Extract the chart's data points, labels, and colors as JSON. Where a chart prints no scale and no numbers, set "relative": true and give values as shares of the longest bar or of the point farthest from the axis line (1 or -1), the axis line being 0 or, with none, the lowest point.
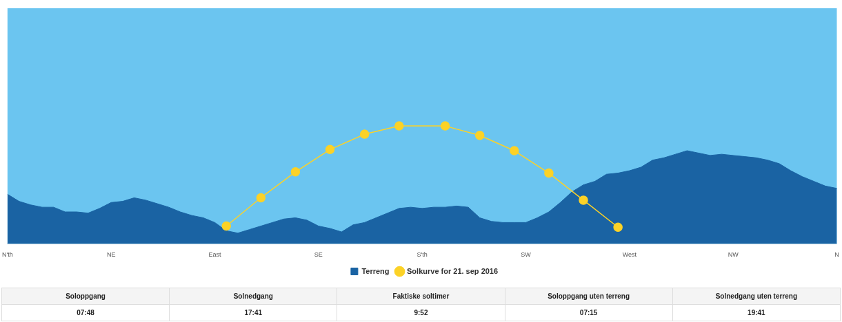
{
  "chart_data": {
    "type": "area",
    "relative": true,
    "categories": [
      "N'th",
      null,
      null,
      null,
      null,
      null,
      null,
      null,
      null,
      "NE",
      null,
      null,
      null,
      null,
      null,
      null,
      null,
      null,
      "East",
      null,
      null,
      null,
      null,
      null,
      null,
      null,
      null,
      "SE",
      null,
      null,
      null,
      null,
      null,
      null,
      null,
      null,
      "S'th",
      null,
      null,
      null,
      null,
      null,
      null,
      null,
      null,
      "SW",
      null,
      null,
      null,
      null,
      null,
      null,
      null,
      null,
      "West",
      null,
      null,
      null,
      null,
      null,
      null,
      null,
      null,
      "NW",
      null,
      null,
      null,
      null,
      null,
      null,
      null,
      null,
      "N"
    ],
    "series": [
      {
        "name": "Terreng",
        "color": "#1a63a3",
        "marker": "none",
        "values": [
          0.42,
          0.36,
          0.33,
          0.31,
          0.31,
          0.27,
          0.27,
          0.26,
          0.3,
          0.35,
          0.36,
          0.39,
          0.37,
          0.34,
          0.31,
          0.27,
          0.24,
          0.22,
          0.18,
          0.11,
          0.09,
          0.12,
          0.15,
          0.18,
          0.21,
          0.22,
          0.2,
          0.15,
          0.13,
          0.1,
          0.16,
          0.18,
          0.22,
          0.26,
          0.3,
          0.31,
          0.3,
          0.31,
          0.31,
          0.32,
          0.31,
          0.22,
          0.19,
          0.18,
          0.18,
          0.18,
          0.22,
          0.27,
          0.35,
          0.44,
          0.5,
          0.53,
          0.59,
          0.6,
          0.62,
          0.65,
          0.71,
          0.73,
          0.76,
          0.79,
          0.77,
          0.75,
          0.76,
          0.75,
          0.74,
          0.73,
          0.71,
          0.68,
          0.62,
          0.57,
          0.53,
          0.49,
          0.47
        ]
      },
      {
        "name": "Solkurve for 21. sep 2016",
        "type": "line",
        "color": "#fcd227",
        "marker": "circle",
        "line_style": "solid",
        "values": [
          null,
          null,
          null,
          null,
          null,
          null,
          null,
          null,
          null,
          null,
          null,
          null,
          null,
          null,
          null,
          null,
          null,
          null,
          null,
          0.15,
          null,
          null,
          0.39,
          null,
          null,
          0.61,
          null,
          null,
          0.8,
          null,
          null,
          0.93,
          null,
          null,
          1,
          null,
          null,
          null,
          1,
          null,
          null,
          0.92,
          null,
          null,
          0.79,
          null,
          null,
          0.6,
          null,
          null,
          0.37,
          null,
          null,
          0.14,
          null,
          null,
          null,
          null,
          null,
          null,
          null,
          null,
          null,
          null,
          null,
          null,
          null,
          null,
          null,
          null,
          null,
          null,
          null
        ]
      }
    ],
    "bands": [
      {
        "axis": "x",
        "from": "N'th",
        "to": "N",
        "color": "#6bc5f0"
      }
    ],
    "grid": false,
    "legend": "bottom",
    "annotations": [
      "Soloppgang",
      "Solnedgang",
      "Faktiske soltimer",
      "Soloppgang uten terreng",
      "Solnedgang uten terreng",
      "07:48",
      "17:41",
      "9:52",
      "07:15",
      "19:41"
    ]
  }
}
